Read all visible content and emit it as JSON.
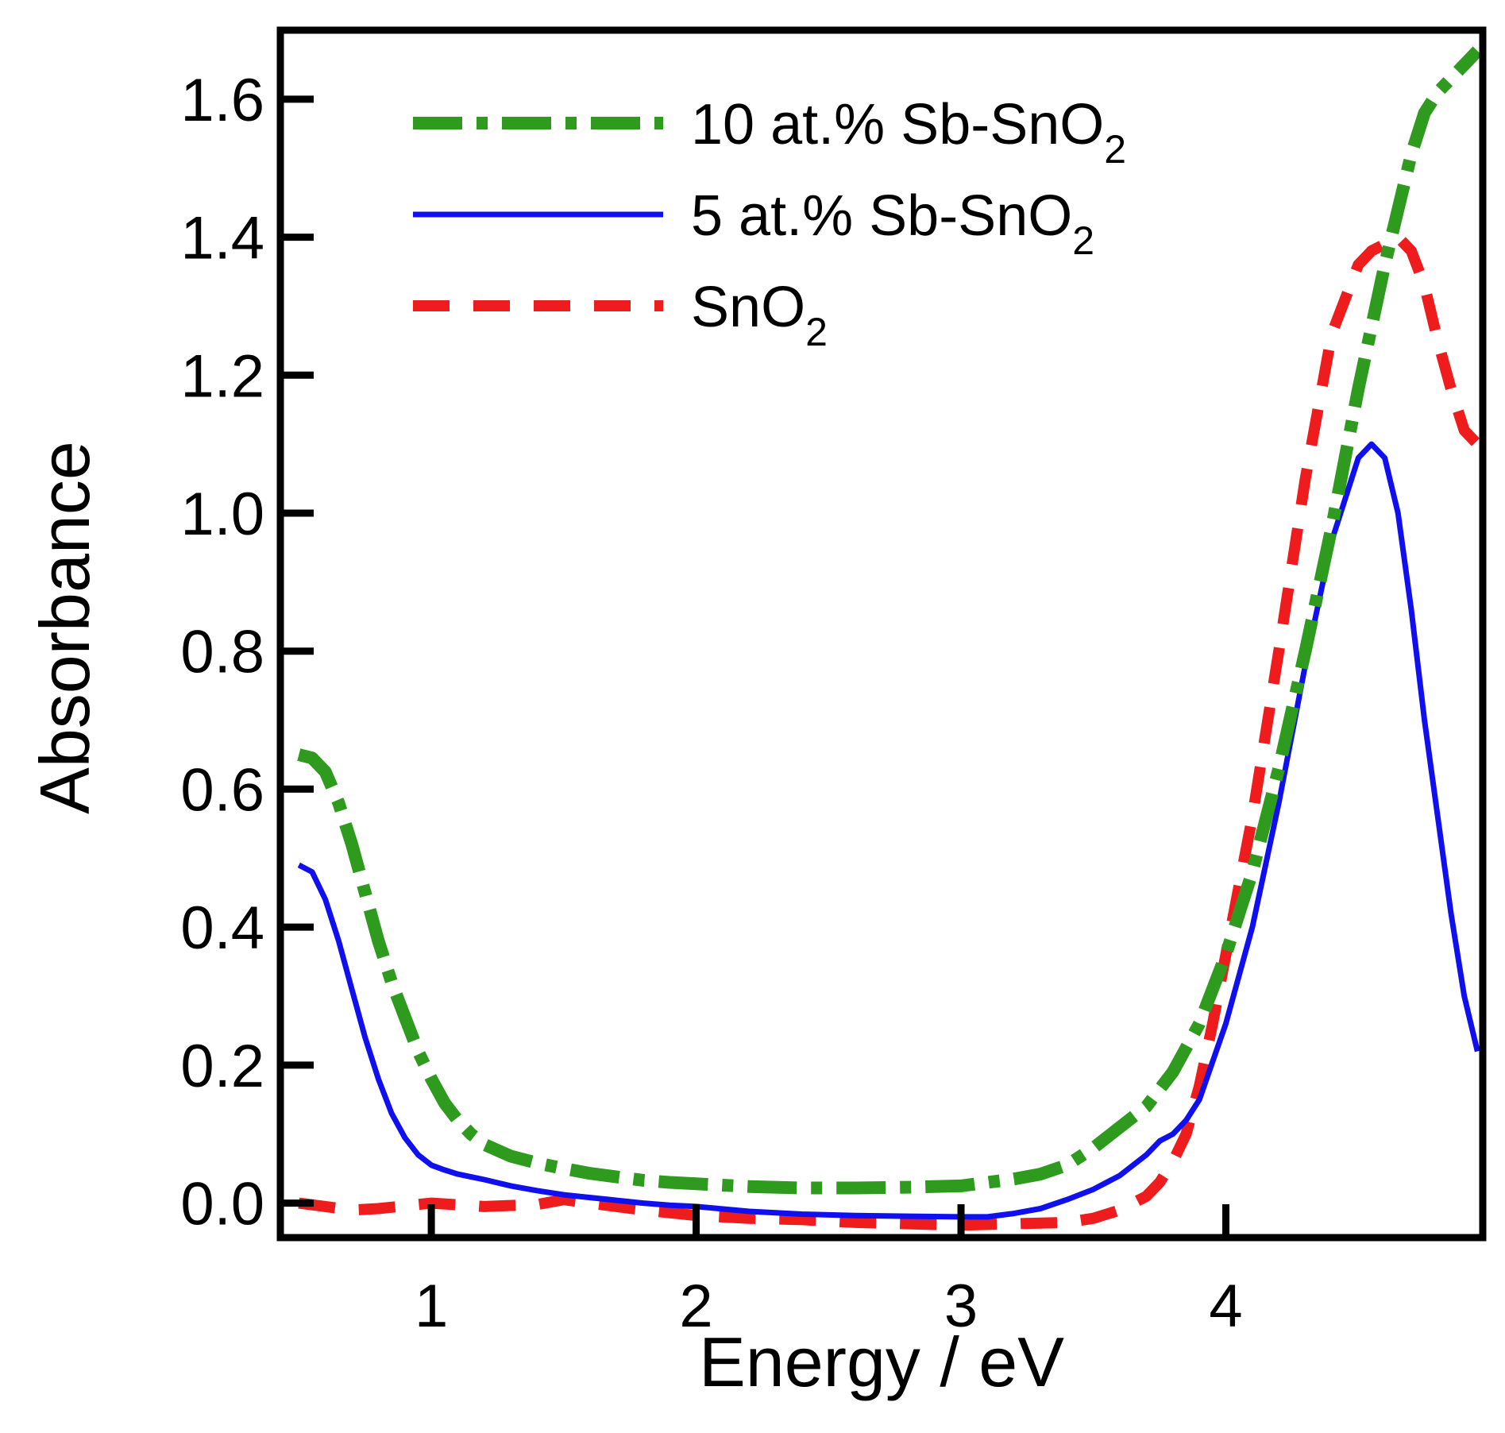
{
  "chart_data": {
    "type": "line",
    "title": "",
    "xlabel": "Energy / eV",
    "ylabel": "Absorbance",
    "xlim": [
      0.43,
      4.97
    ],
    "ylim": [
      -0.05,
      1.7
    ],
    "xticks": [
      {
        "value": 1,
        "label": "1"
      },
      {
        "value": 2,
        "label": "2"
      },
      {
        "value": 3,
        "label": "3"
      },
      {
        "value": 4,
        "label": "4"
      }
    ],
    "yticks": [
      {
        "value": 0.0,
        "label": "0.0"
      },
      {
        "value": 0.2,
        "label": "0.2"
      },
      {
        "value": 0.4,
        "label": "0.4"
      },
      {
        "value": 0.6,
        "label": "0.6"
      },
      {
        "value": 0.8,
        "label": "0.8"
      },
      {
        "value": 1.0,
        "label": "1.0"
      },
      {
        "value": 1.2,
        "label": "1.2"
      },
      {
        "value": 1.4,
        "label": "1.4"
      },
      {
        "value": 1.6,
        "label": "1.6"
      }
    ],
    "grid": false,
    "legend_position": "top",
    "series": [
      {
        "name": "10 at.% Sb-SnO2",
        "legend_main": "10 at.% Sb-SnO",
        "legend_sub": "2",
        "color": "#2e9a1e",
        "style": "dash-dot",
        "x": [
          0.5,
          0.55,
          0.6,
          0.65,
          0.7,
          0.75,
          0.8,
          0.85,
          0.9,
          0.95,
          1.0,
          1.05,
          1.1,
          1.15,
          1.2,
          1.3,
          1.4,
          1.5,
          1.6,
          1.7,
          1.8,
          1.9,
          2.0,
          2.2,
          2.4,
          2.6,
          2.8,
          3.0,
          3.1,
          3.2,
          3.3,
          3.4,
          3.5,
          3.6,
          3.7,
          3.8,
          3.9,
          4.0,
          4.1,
          4.2,
          4.3,
          4.4,
          4.5,
          4.6,
          4.7,
          4.75,
          4.8,
          4.85,
          4.9,
          4.95
        ],
        "y": [
          0.65,
          0.645,
          0.625,
          0.58,
          0.52,
          0.45,
          0.38,
          0.32,
          0.27,
          0.22,
          0.18,
          0.145,
          0.12,
          0.1,
          0.085,
          0.068,
          0.058,
          0.05,
          0.043,
          0.038,
          0.033,
          0.03,
          0.028,
          0.024,
          0.022,
          0.022,
          0.023,
          0.025,
          0.03,
          0.035,
          0.042,
          0.055,
          0.08,
          0.11,
          0.14,
          0.19,
          0.26,
          0.36,
          0.48,
          0.63,
          0.8,
          0.98,
          1.18,
          1.36,
          1.52,
          1.58,
          1.61,
          1.63,
          1.65,
          1.67
        ]
      },
      {
        "name": "5 at.% Sb-SnO2",
        "legend_main": "5 at.% Sb-SnO",
        "legend_sub": "2",
        "color": "#1010ee",
        "style": "solid",
        "x": [
          0.5,
          0.55,
          0.6,
          0.65,
          0.7,
          0.75,
          0.8,
          0.85,
          0.9,
          0.95,
          1.0,
          1.05,
          1.1,
          1.15,
          1.2,
          1.3,
          1.4,
          1.5,
          1.6,
          1.7,
          1.8,
          1.9,
          2.0,
          2.2,
          2.4,
          2.6,
          2.8,
          3.0,
          3.1,
          3.2,
          3.3,
          3.4,
          3.5,
          3.6,
          3.7,
          3.75,
          3.8,
          3.85,
          3.9,
          4.0,
          4.1,
          4.2,
          4.3,
          4.4,
          4.5,
          4.55,
          4.6,
          4.65,
          4.7,
          4.75,
          4.8,
          4.85,
          4.9,
          4.95
        ],
        "y": [
          0.49,
          0.48,
          0.44,
          0.38,
          0.31,
          0.24,
          0.18,
          0.13,
          0.095,
          0.07,
          0.055,
          0.048,
          0.042,
          0.038,
          0.034,
          0.025,
          0.018,
          0.012,
          0.008,
          0.004,
          0.0,
          -0.003,
          -0.005,
          -0.012,
          -0.016,
          -0.018,
          -0.019,
          -0.02,
          -0.02,
          -0.015,
          -0.008,
          0.005,
          0.02,
          0.04,
          0.07,
          0.09,
          0.1,
          0.12,
          0.15,
          0.26,
          0.4,
          0.58,
          0.78,
          0.96,
          1.08,
          1.1,
          1.08,
          1.0,
          0.86,
          0.7,
          0.56,
          0.42,
          0.3,
          0.22
        ]
      },
      {
        "name": "SnO2",
        "legend_main": "SnO",
        "legend_sub": "2",
        "color": "#ee1c1c",
        "style": "dashed",
        "x": [
          0.5,
          0.6,
          0.7,
          0.8,
          0.9,
          1.0,
          1.2,
          1.4,
          1.5,
          1.6,
          1.8,
          2.0,
          2.2,
          2.4,
          2.6,
          2.8,
          3.0,
          3.2,
          3.4,
          3.5,
          3.6,
          3.7,
          3.75,
          3.8,
          3.85,
          3.9,
          3.95,
          4.0,
          4.1,
          4.2,
          4.3,
          4.4,
          4.5,
          4.55,
          4.6,
          4.65,
          4.7,
          4.75,
          4.8,
          4.85,
          4.9,
          4.95
        ],
        "y": [
          0.0,
          -0.005,
          -0.01,
          -0.008,
          -0.004,
          0.0,
          -0.005,
          -0.002,
          0.005,
          0.0,
          -0.01,
          -0.018,
          -0.022,
          -0.024,
          -0.028,
          -0.03,
          -0.032,
          -0.03,
          -0.028,
          -0.022,
          -0.01,
          0.01,
          0.03,
          0.06,
          0.1,
          0.17,
          0.26,
          0.36,
          0.56,
          0.8,
          1.05,
          1.26,
          1.36,
          1.38,
          1.39,
          1.4,
          1.38,
          1.33,
          1.25,
          1.18,
          1.12,
          1.1
        ]
      }
    ]
  }
}
